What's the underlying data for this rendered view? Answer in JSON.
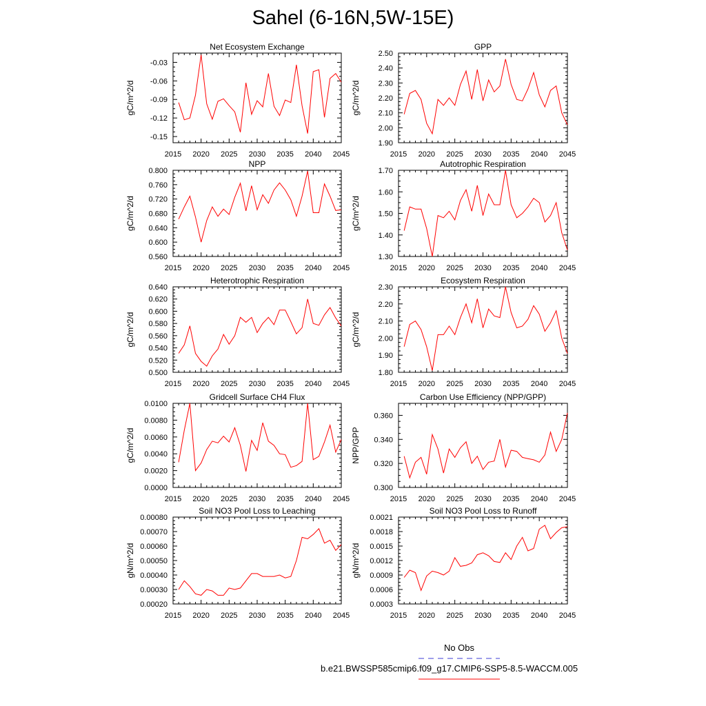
{
  "figure": {
    "title": "Sahel (6-16N,5W-15E)",
    "colors": {
      "series": "#ff0000",
      "obs": "#3b3bd6",
      "axis": "#000000"
    }
  },
  "legend": {
    "obs_label": "No Obs",
    "run_label": "b.e21.BWSSP585cmip6.f09_g17.CMIP6-SSP5-8.5-WACCM.005"
  },
  "chart_data": [
    {
      "type": "line",
      "title": "Net Ecosystem Exchange",
      "ylabel": "gC/m^2/d",
      "xlim": [
        2015,
        2045
      ],
      "ylim": [
        -0.16,
        -0.015
      ],
      "xticks": [
        "2015",
        "2020",
        "2025",
        "2030",
        "2035",
        "2040",
        "2045"
      ],
      "yticks": [
        -0.15,
        -0.12,
        -0.09,
        -0.06,
        -0.03
      ],
      "ytick_labels": [
        "-0.15",
        "-0.12",
        "-0.09",
        "-0.06",
        "-0.03"
      ],
      "x": [
        2016,
        2017,
        2018,
        2019,
        2020,
        2021,
        2022,
        2023,
        2024,
        2025,
        2026,
        2027,
        2028,
        2029,
        2030,
        2031,
        2032,
        2033,
        2034,
        2035,
        2036,
        2037,
        2038,
        2039,
        2040,
        2041,
        2042,
        2043,
        2044,
        2045
      ],
      "series": [
        {
          "values": [
            -0.095,
            -0.123,
            -0.12,
            -0.083,
            -0.018,
            -0.097,
            -0.122,
            -0.093,
            -0.089,
            -0.1,
            -0.11,
            -0.143,
            -0.063,
            -0.114,
            -0.092,
            -0.102,
            -0.048,
            -0.101,
            -0.116,
            -0.091,
            -0.095,
            -0.034,
            -0.1,
            -0.145,
            -0.045,
            -0.042,
            -0.119,
            -0.056,
            -0.048,
            -0.062
          ]
        }
      ]
    },
    {
      "type": "line",
      "title": "GPP",
      "ylabel": "gC/m^2/d",
      "xlim": [
        2015,
        2045
      ],
      "ylim": [
        1.9,
        2.5
      ],
      "xticks": [
        "2015",
        "2020",
        "2025",
        "2030",
        "2035",
        "2040",
        "2045"
      ],
      "yticks": [
        1.9,
        2.0,
        2.1,
        2.2,
        2.3,
        2.4,
        2.5
      ],
      "ytick_labels": [
        "1.90",
        "2.00",
        "2.10",
        "2.20",
        "2.30",
        "2.40",
        "2.50"
      ],
      "x": [
        2016,
        2017,
        2018,
        2019,
        2020,
        2021,
        2022,
        2023,
        2024,
        2025,
        2026,
        2027,
        2028,
        2029,
        2030,
        2031,
        2032,
        2033,
        2034,
        2035,
        2036,
        2037,
        2038,
        2039,
        2040,
        2041,
        2042,
        2043,
        2044,
        2045
      ],
      "series": [
        {
          "values": [
            2.09,
            2.23,
            2.25,
            2.19,
            2.03,
            1.96,
            2.19,
            2.15,
            2.2,
            2.15,
            2.29,
            2.38,
            2.19,
            2.39,
            2.18,
            2.32,
            2.24,
            2.28,
            2.46,
            2.29,
            2.19,
            2.18,
            2.26,
            2.37,
            2.22,
            2.14,
            2.25,
            2.28,
            2.1,
            2.02
          ]
        }
      ]
    },
    {
      "type": "line",
      "title": "NPP",
      "ylabel": "gC/m^2/d",
      "xlim": [
        2015,
        2045
      ],
      "ylim": [
        0.56,
        0.8
      ],
      "xticks": [
        "2015",
        "2020",
        "2025",
        "2030",
        "2035",
        "2040",
        "2045"
      ],
      "yticks": [
        0.56,
        0.6,
        0.64,
        0.68,
        0.72,
        0.76,
        0.8
      ],
      "ytick_labels": [
        "0.560",
        "0.600",
        "0.640",
        "0.680",
        "0.720",
        "0.760",
        "0.800"
      ],
      "x": [
        2016,
        2017,
        2018,
        2019,
        2020,
        2021,
        2022,
        2023,
        2024,
        2025,
        2026,
        2027,
        2028,
        2029,
        2030,
        2031,
        2032,
        2033,
        2034,
        2035,
        2036,
        2037,
        2038,
        2039,
        2040,
        2041,
        2042,
        2043,
        2044,
        2045
      ],
      "series": [
        {
          "values": [
            0.664,
            0.698,
            0.728,
            0.67,
            0.6,
            0.66,
            0.698,
            0.672,
            0.692,
            0.677,
            0.725,
            0.764,
            0.687,
            0.757,
            0.69,
            0.732,
            0.708,
            0.745,
            0.765,
            0.745,
            0.718,
            0.672,
            0.728,
            0.798,
            0.682,
            0.682,
            0.762,
            0.728,
            0.688,
            0.69
          ]
        }
      ]
    },
    {
      "type": "line",
      "title": "Autotrophic Respiration",
      "ylabel": "gC/m^2/d",
      "xlim": [
        2015,
        2045
      ],
      "ylim": [
        1.3,
        1.7
      ],
      "xticks": [
        "2015",
        "2020",
        "2025",
        "2030",
        "2035",
        "2040",
        "2045"
      ],
      "yticks": [
        1.3,
        1.4,
        1.5,
        1.6,
        1.7
      ],
      "ytick_labels": [
        "1.30",
        "1.40",
        "1.50",
        "1.60",
        "1.70"
      ],
      "x": [
        2016,
        2017,
        2018,
        2019,
        2020,
        2021,
        2022,
        2023,
        2024,
        2025,
        2026,
        2027,
        2028,
        2029,
        2030,
        2031,
        2032,
        2033,
        2034,
        2035,
        2036,
        2037,
        2038,
        2039,
        2040,
        2041,
        2042,
        2043,
        2044,
        2045
      ],
      "series": [
        {
          "values": [
            1.42,
            1.53,
            1.52,
            1.52,
            1.43,
            1.3,
            1.49,
            1.48,
            1.51,
            1.47,
            1.56,
            1.61,
            1.51,
            1.63,
            1.49,
            1.59,
            1.54,
            1.54,
            1.7,
            1.54,
            1.48,
            1.5,
            1.53,
            1.57,
            1.55,
            1.46,
            1.49,
            1.55,
            1.41,
            1.33
          ]
        }
      ]
    },
    {
      "type": "line",
      "title": "Heterotrophic Respiration",
      "ylabel": "gC/m^2/d",
      "xlim": [
        2015,
        2045
      ],
      "ylim": [
        0.5,
        0.64
      ],
      "xticks": [
        "2015",
        "2020",
        "2025",
        "2030",
        "2035",
        "2040",
        "2045"
      ],
      "yticks": [
        0.5,
        0.52,
        0.54,
        0.56,
        0.58,
        0.6,
        0.62,
        0.64
      ],
      "ytick_labels": [
        "0.500",
        "0.520",
        "0.540",
        "0.560",
        "0.580",
        "0.600",
        "0.620",
        "0.640"
      ],
      "x": [
        2016,
        2017,
        2018,
        2019,
        2020,
        2021,
        2022,
        2023,
        2024,
        2025,
        2026,
        2027,
        2028,
        2029,
        2030,
        2031,
        2032,
        2033,
        2034,
        2035,
        2036,
        2037,
        2038,
        2039,
        2040,
        2041,
        2042,
        2043,
        2044,
        2045
      ],
      "series": [
        {
          "values": [
            0.531,
            0.545,
            0.576,
            0.531,
            0.518,
            0.51,
            0.527,
            0.538,
            0.562,
            0.546,
            0.56,
            0.59,
            0.582,
            0.59,
            0.565,
            0.58,
            0.59,
            0.578,
            0.602,
            0.602,
            0.583,
            0.563,
            0.573,
            0.62,
            0.58,
            0.577,
            0.594,
            0.606,
            0.589,
            0.576
          ]
        }
      ]
    },
    {
      "type": "line",
      "title": "Ecosystem Respiration",
      "ylabel": "gC/m^2/d",
      "xlim": [
        2015,
        2045
      ],
      "ylim": [
        1.8,
        2.3
      ],
      "xticks": [
        "2015",
        "2020",
        "2025",
        "2030",
        "2035",
        "2040",
        "2045"
      ],
      "yticks": [
        1.8,
        1.9,
        2.0,
        2.1,
        2.2,
        2.3
      ],
      "ytick_labels": [
        "1.80",
        "1.90",
        "2.00",
        "2.10",
        "2.20",
        "2.30"
      ],
      "x": [
        2016,
        2017,
        2018,
        2019,
        2020,
        2021,
        2022,
        2023,
        2024,
        2025,
        2026,
        2027,
        2028,
        2029,
        2030,
        2031,
        2032,
        2033,
        2034,
        2035,
        2036,
        2037,
        2038,
        2039,
        2040,
        2041,
        2042,
        2043,
        2044,
        2045
      ],
      "series": [
        {
          "values": [
            1.95,
            2.08,
            2.1,
            2.05,
            1.95,
            1.81,
            2.02,
            2.02,
            2.07,
            2.02,
            2.12,
            2.2,
            2.09,
            2.23,
            2.06,
            2.17,
            2.13,
            2.12,
            2.3,
            2.15,
            2.06,
            2.07,
            2.11,
            2.19,
            2.14,
            2.04,
            2.09,
            2.16,
            2.0,
            1.91
          ]
        }
      ]
    },
    {
      "type": "line",
      "title": "Gridcell Surface CH4 Flux",
      "ylabel": "gC/m^2/d",
      "xlim": [
        2015,
        2045
      ],
      "ylim": [
        0.0,
        0.01
      ],
      "xticks": [
        "2015",
        "2020",
        "2025",
        "2030",
        "2035",
        "2040",
        "2045"
      ],
      "yticks": [
        0.0,
        0.002,
        0.004,
        0.006,
        0.008,
        0.01
      ],
      "ytick_labels": [
        "0.0000",
        "0.0020",
        "0.0040",
        "0.0060",
        "0.0080",
        "0.0100"
      ],
      "x": [
        2016,
        2017,
        2018,
        2019,
        2020,
        2021,
        2022,
        2023,
        2024,
        2025,
        2026,
        2027,
        2028,
        2029,
        2030,
        2031,
        2032,
        2033,
        2034,
        2035,
        2036,
        2037,
        2038,
        2039,
        2040,
        2041,
        2042,
        2043,
        2044,
        2045
      ],
      "series": [
        {
          "values": [
            0.003,
            0.0068,
            0.01,
            0.002,
            0.0029,
            0.0045,
            0.0055,
            0.0053,
            0.0061,
            0.0054,
            0.0071,
            0.005,
            0.0019,
            0.0056,
            0.0044,
            0.0077,
            0.0055,
            0.005,
            0.004,
            0.0039,
            0.0024,
            0.0026,
            0.0031,
            0.01,
            0.0033,
            0.0037,
            0.0054,
            0.0074,
            0.0042,
            0.0057
          ]
        }
      ]
    },
    {
      "type": "line",
      "title": "Carbon Use Efficiency (NPP/GPP)",
      "ylabel": "NPP/GPP",
      "xlim": [
        2015,
        2045
      ],
      "ylim": [
        0.3,
        0.37
      ],
      "xticks": [
        "2015",
        "2020",
        "2025",
        "2030",
        "2035",
        "2040",
        "2045"
      ],
      "yticks": [
        0.3,
        0.32,
        0.34,
        0.36
      ],
      "ytick_labels": [
        "0.300",
        "0.320",
        "0.340",
        "0.360"
      ],
      "x": [
        2016,
        2017,
        2018,
        2019,
        2020,
        2021,
        2022,
        2023,
        2024,
        2025,
        2026,
        2027,
        2028,
        2029,
        2030,
        2031,
        2032,
        2033,
        2034,
        2035,
        2036,
        2037,
        2038,
        2039,
        2040,
        2041,
        2042,
        2043,
        2044,
        2045
      ],
      "series": [
        {
          "values": [
            0.326,
            0.308,
            0.321,
            0.325,
            0.311,
            0.344,
            0.332,
            0.312,
            0.332,
            0.325,
            0.333,
            0.338,
            0.32,
            0.326,
            0.315,
            0.321,
            0.322,
            0.34,
            0.317,
            0.331,
            0.33,
            0.325,
            0.324,
            0.323,
            0.321,
            0.327,
            0.346,
            0.33,
            0.34,
            0.362
          ]
        }
      ]
    },
    {
      "type": "line",
      "title": "Soil NO3 Pool Loss to Leaching",
      "ylabel": "gN/m^2/d",
      "xlim": [
        2015,
        2045
      ],
      "ylim": [
        0.0002,
        0.0008
      ],
      "xticks": [
        "2015",
        "2020",
        "2025",
        "2030",
        "2035",
        "2040",
        "2045"
      ],
      "yticks": [
        0.0002,
        0.0003,
        0.0004,
        0.0005,
        0.0006,
        0.0007,
        0.0008
      ],
      "ytick_labels": [
        "0.00020",
        "0.00030",
        "0.00040",
        "0.00050",
        "0.00060",
        "0.00070",
        "0.00080"
      ],
      "x": [
        2016,
        2017,
        2018,
        2019,
        2020,
        2021,
        2022,
        2023,
        2024,
        2025,
        2026,
        2027,
        2028,
        2029,
        2030,
        2031,
        2032,
        2033,
        2034,
        2035,
        2036,
        2037,
        2038,
        2039,
        2040,
        2041,
        2042,
        2043,
        2044,
        2045
      ],
      "series": [
        {
          "values": [
            0.0003,
            0.00036,
            0.00032,
            0.00027,
            0.00026,
            0.0003,
            0.00029,
            0.00026,
            0.00026,
            0.00031,
            0.0003,
            0.00031,
            0.00036,
            0.00041,
            0.00041,
            0.00039,
            0.00039,
            0.00039,
            0.0004,
            0.00038,
            0.00039,
            0.0005,
            0.00066,
            0.00065,
            0.00068,
            0.00072,
            0.00062,
            0.00064,
            0.00057,
            0.00061
          ]
        }
      ]
    },
    {
      "type": "line",
      "title": "Soil NO3 Pool Loss to Runoff",
      "ylabel": "gN/m^2/d",
      "xlim": [
        2015,
        2045
      ],
      "ylim": [
        0.0003,
        0.0021
      ],
      "xticks": [
        "2015",
        "2020",
        "2025",
        "2030",
        "2035",
        "2040",
        "2045"
      ],
      "yticks": [
        0.0003,
        0.0006,
        0.0009,
        0.0012,
        0.0015,
        0.0018,
        0.0021
      ],
      "ytick_labels": [
        "0.0003",
        "0.0006",
        "0.0009",
        "0.0012",
        "0.0015",
        "0.0018",
        "0.0021"
      ],
      "x": [
        2016,
        2017,
        2018,
        2019,
        2020,
        2021,
        2022,
        2023,
        2024,
        2025,
        2026,
        2027,
        2028,
        2029,
        2030,
        2031,
        2032,
        2033,
        2034,
        2035,
        2036,
        2037,
        2038,
        2039,
        2040,
        2041,
        2042,
        2043,
        2044,
        2045
      ],
      "series": [
        {
          "values": [
            0.00085,
            0.001,
            0.00095,
            0.00058,
            0.00088,
            0.00098,
            0.00095,
            0.0009,
            0.00098,
            0.00126,
            0.00108,
            0.0011,
            0.00115,
            0.00132,
            0.00136,
            0.0013,
            0.00118,
            0.00116,
            0.00136,
            0.00122,
            0.0015,
            0.00168,
            0.0014,
            0.00145,
            0.00185,
            0.00193,
            0.00165,
            0.00178,
            0.00188,
            0.0019
          ]
        }
      ]
    }
  ]
}
